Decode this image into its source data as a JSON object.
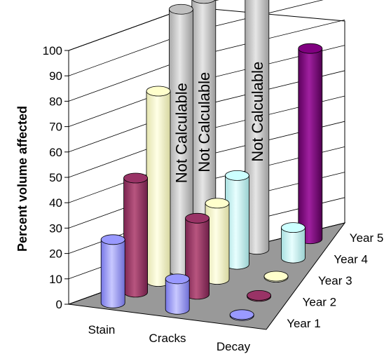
{
  "chart_data": {
    "type": "bar",
    "style": "3d-cylinder",
    "title": "",
    "xlabel": "",
    "ylabel": "Percent volume affected",
    "ylim": [
      0,
      100
    ],
    "yticks": [
      0,
      10,
      20,
      30,
      40,
      50,
      60,
      70,
      80,
      90,
      100
    ],
    "categories": [
      "Stain",
      "Cracks",
      "Decay"
    ],
    "grid": true,
    "legend": "none",
    "series": [
      {
        "name": "Year 1",
        "color": "#9999FF",
        "values": [
          25,
          12,
          0
        ]
      },
      {
        "name": "Year 2",
        "color": "#993366",
        "values": [
          45,
          30,
          0
        ]
      },
      {
        "name": "Year 3",
        "color": "#FFFFCC",
        "values": [
          75,
          30,
          0
        ]
      },
      {
        "name": "Year 4",
        "color": "#CCFFFF",
        "values": [
          null,
          35,
          12
        ]
      },
      {
        "name": "Year 5",
        "color": "#800080",
        "values": [
          null,
          null,
          75
        ]
      }
    ],
    "annotations": [
      {
        "category": "Stain",
        "series": "Year 4",
        "text": "Not Calculable"
      },
      {
        "category": "Stain",
        "series": "Year 5",
        "text": "Not Calculable"
      },
      {
        "category": "Cracks",
        "series": "Year 5",
        "text": "Not Calculable"
      }
    ],
    "colors": {
      "wall": "#FFFFFF",
      "floor": "#999999",
      "grid": "#000000",
      "not_calculable": "#C0C0C0"
    }
  }
}
